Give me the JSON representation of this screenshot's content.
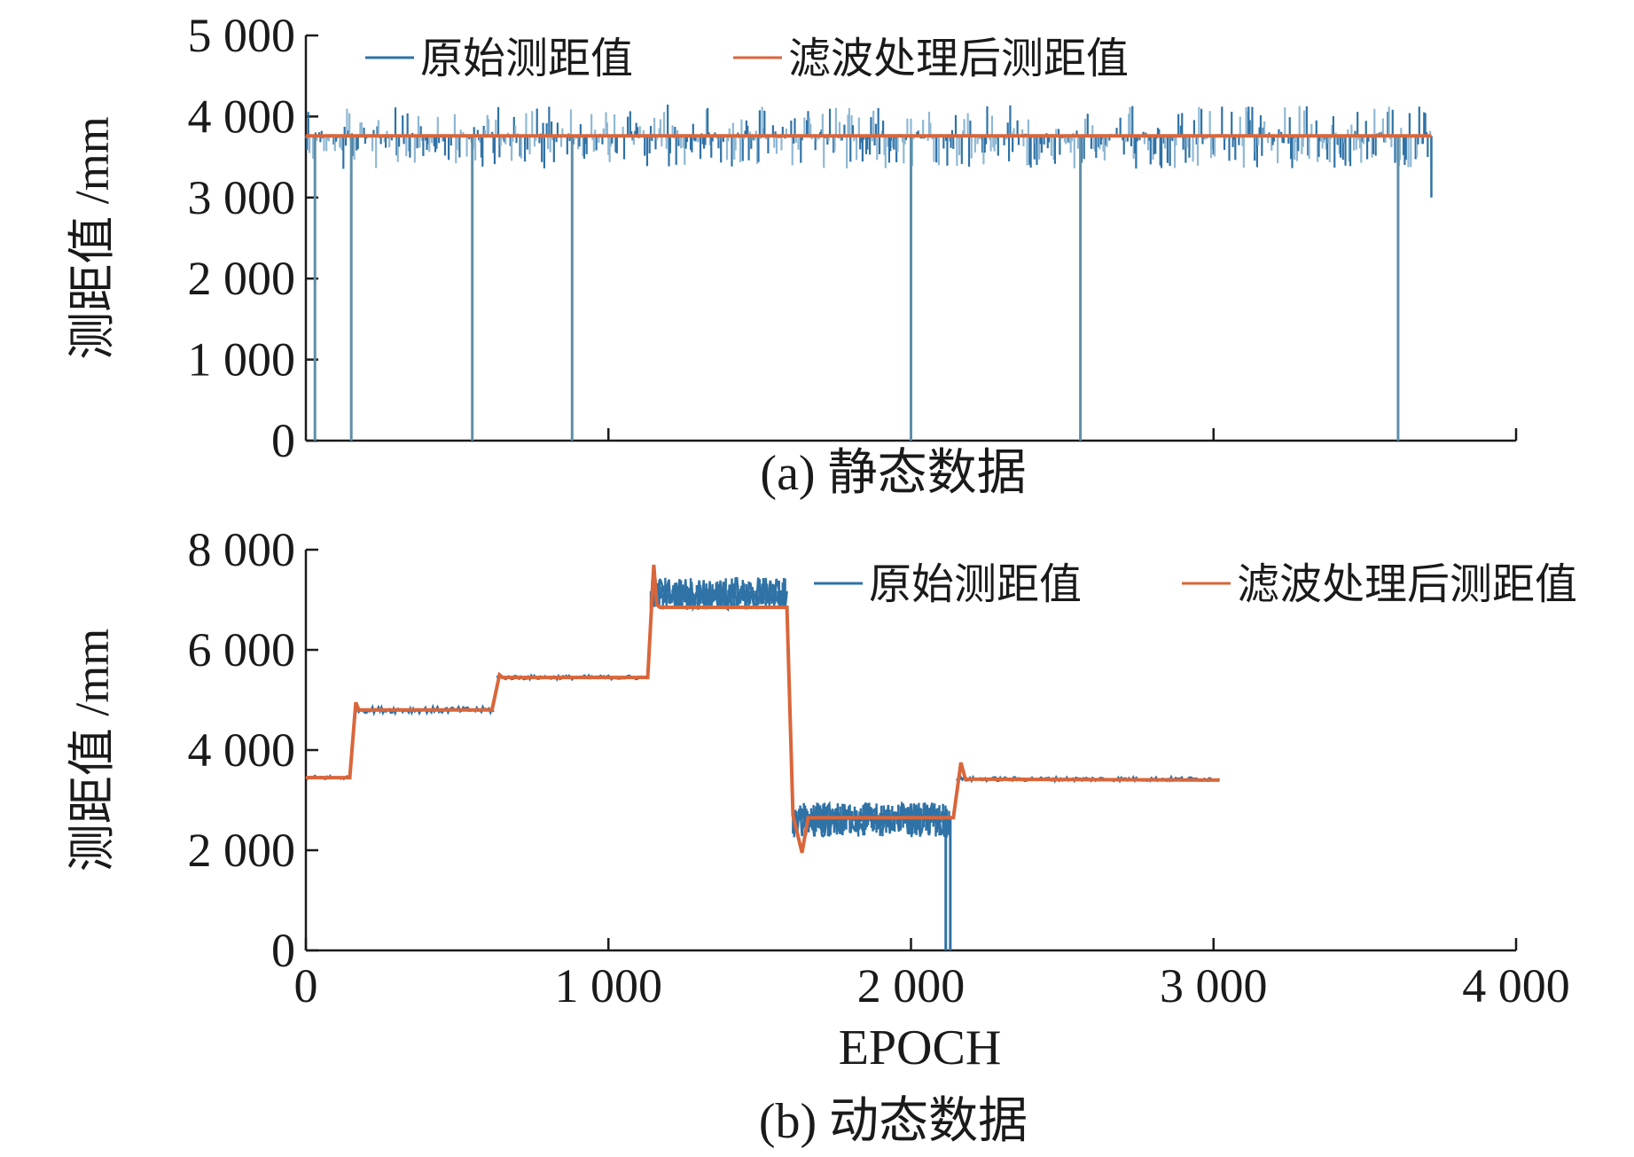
{
  "colors": {
    "raw": "#2f72a6",
    "filtered": "#d9663b",
    "axis": "#1a1a1a"
  },
  "chart_data": [
    {
      "type": "line",
      "caption": "(a) 静态数据",
      "ylabel": "测距值 /mm",
      "xlabel": "",
      "xlim": [
        0,
        4000
      ],
      "ylim": [
        0,
        5000
      ],
      "ytick_labels": [
        "0",
        "1 000",
        "2 000",
        "3 000",
        "4 000",
        "5 000"
      ],
      "yticks": [
        0,
        1000,
        2000,
        3000,
        4000,
        5000
      ],
      "xticks": [
        1000,
        2000,
        3000,
        4000
      ],
      "xtick_labels": [],
      "legend": {
        "position": "top",
        "items": [
          "原始测距值",
          "滤波处理后测距值"
        ]
      },
      "series": [
        {
          "name": "原始测距值",
          "description_points": {
            "x_range": [
              0,
              3720
            ],
            "baseline": 3760,
            "noise_band": [
              3350,
              4150
            ],
            "dropouts_to_zero_at_x": [
              30,
              150,
              550,
              880,
              2000,
              2560,
              3610
            ]
          }
        },
        {
          "name": "滤波处理后测距值",
          "x": [
            0,
            3720
          ],
          "y": [
            3760,
            3760
          ]
        }
      ]
    },
    {
      "type": "line",
      "caption": "(b) 动态数据",
      "ylabel": "测距值 /mm",
      "xlabel": "EPOCH",
      "xlim": [
        0,
        4000
      ],
      "ylim": [
        0,
        8000
      ],
      "yticks": [
        0,
        2000,
        4000,
        6000,
        8000
      ],
      "ytick_labels": [
        "0",
        "2 000",
        "4 000",
        "6 000",
        "8 000"
      ],
      "xticks": [
        0,
        1000,
        2000,
        3000,
        4000
      ],
      "xtick_labels": [
        "0",
        "1 000",
        "2 000",
        "3 000",
        "4 000"
      ],
      "legend": {
        "position": "top-right",
        "items": [
          "原始测距值",
          "滤波处理后测距值"
        ]
      },
      "series": [
        {
          "name": "原始测距值",
          "segments": [
            {
              "x": [
                0,
                150
              ],
              "level": 3450,
              "noise": 40
            },
            {
              "x": [
                160,
                620
              ],
              "level": 4800,
              "noise": 60
            },
            {
              "x": [
                630,
                1130
              ],
              "level": 5450,
              "noise": 40
            },
            {
              "x": [
                1140,
                1590
              ],
              "level": 7050,
              "noise_band": [
                6800,
                7450
              ]
            },
            {
              "x": [
                1610,
                2130
              ],
              "level": 2650,
              "noise_band": [
                2250,
                2950
              ]
            },
            {
              "x": [
                2150,
                3020
              ],
              "level": 3420,
              "noise": 40
            }
          ],
          "dropouts_to_zero_at_x": [
            2115,
            2130
          ]
        },
        {
          "name": "滤波处理后测距值",
          "x": [
            0,
            145,
            165,
            175,
            615,
            640,
            650,
            1130,
            1150,
            1160,
            1170,
            1590,
            1610,
            1640,
            1660,
            2140,
            2165,
            2180,
            3020
          ],
          "y": [
            3450,
            3450,
            4950,
            4800,
            4800,
            5500,
            5450,
            5450,
            7700,
            6900,
            6850,
            6850,
            2700,
            1950,
            2650,
            2650,
            3750,
            3420,
            3400
          ]
        }
      ]
    }
  ]
}
